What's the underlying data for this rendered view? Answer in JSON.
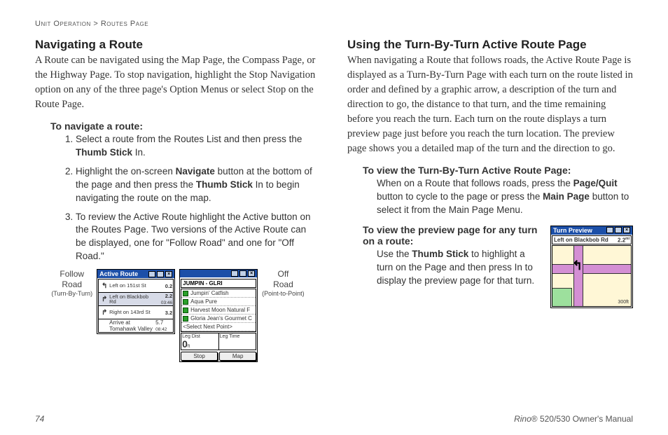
{
  "breadcrumb": {
    "section": "Unit Operation",
    "sep": ">",
    "page": "Routes Page"
  },
  "left": {
    "heading": "Navigating a Route",
    "intro": "A Route can be navigated using the Map Page, the Compass Page, or the Highway Page. To stop navigation, highlight the Stop Navigation option on any of the three page's Option Menus or select Stop on the Route Page.",
    "subhead": "To navigate a route:",
    "steps": {
      "s1a": "Select a route from the Routes List and then press the ",
      "s1b": "Thumb Stick",
      "s1c": " In.",
      "s2a": "Highlight the on-screen ",
      "s2b": "Navigate",
      "s2c": " button at the bottom of the page and then press the ",
      "s2d": "Thumb Stick",
      "s2e": " In to begin navigating the route on the map.",
      "s3": "To review the Active Route highlight the Active button on the Routes Page. Two versions of the Active Route can be displayed, one for \"Follow Road\" and one for \"Off Road.\""
    },
    "figA": {
      "label1": "Follow",
      "label2": "Road",
      "label3": "(Turn-By-Turn)",
      "title": "Active Route",
      "rows": [
        {
          "dir": "↰",
          "text": "Left on 151st St",
          "dist": "0.2",
          "time": ""
        },
        {
          "dir": "↱",
          "text": "Left on Blackbob Rd",
          "dist": "2.2",
          "time": "03:46"
        },
        {
          "dir": "↱",
          "text": "Right on 143rd St",
          "dist": "3.2",
          "time": ""
        }
      ],
      "footer": {
        "text": "Arrive at Tomahawk Valley",
        "dist": "5.7",
        "time": "08:42"
      }
    },
    "figB": {
      "label1": "Off",
      "label2": "Road",
      "label3": "(Point-to-Point)",
      "banner": "JUMPIN - GLRI",
      "items": [
        "Jumpin' Catfish",
        "Aqua Pure",
        "Harvest Moon Natural F",
        "Gloria Jean's Gourmet C",
        "<Select Next Point>"
      ],
      "stat1_label": "Leg Dist",
      "stat1_val": "0",
      "stat1_unit": "ft",
      "stat2_label": "Leg Time",
      "btn1": "Stop",
      "btn2": "Map"
    }
  },
  "right": {
    "heading": "Using the Turn-By-Turn Active Route Page",
    "intro": "When navigating a Route that follows roads, the Active Route Page is displayed as a Turn-By-Turn Page with each turn on the route listed in order and defined by a graphic arrow, a description of the turn and direction to go, the distance to that turn, and the time remaining before you reach the turn. Each turn on the route displays a turn preview page just before you reach the turn location. The preview page shows you a detailed map of the turn and the direction to go.",
    "sub1": "To view the Turn-By-Turn Active Route Page:",
    "sub1_body_a": "When on a Route that follows roads, press the ",
    "sub1_body_b": "Page/Quit",
    "sub1_body_c": " button to cycle to the page or press the ",
    "sub1_body_d": "Main Page",
    "sub1_body_e": " button to select it from the Main Page Menu.",
    "sub2": "To view the preview page for any turn on a route:",
    "sub2_body_a": "Use the ",
    "sub2_body_b": "Thumb Stick",
    "sub2_body_c": " to highlight a turn on the Page and then press In to display the preview page for that turn.",
    "preview": {
      "title": "Turn Preview",
      "line": "Left on Blackbob Rd",
      "dist": "2.2",
      "unit": "mi",
      "scale": "300ft"
    }
  },
  "footer": {
    "pageno": "74",
    "manual_a": "Rino",
    "manual_b": "® 520/530 Owner's Manual"
  },
  "colors": {
    "titlebar": "#1c4fa8",
    "map_bg": "#fff7d6",
    "road": "#d48fd4",
    "park": "#9de09d"
  }
}
